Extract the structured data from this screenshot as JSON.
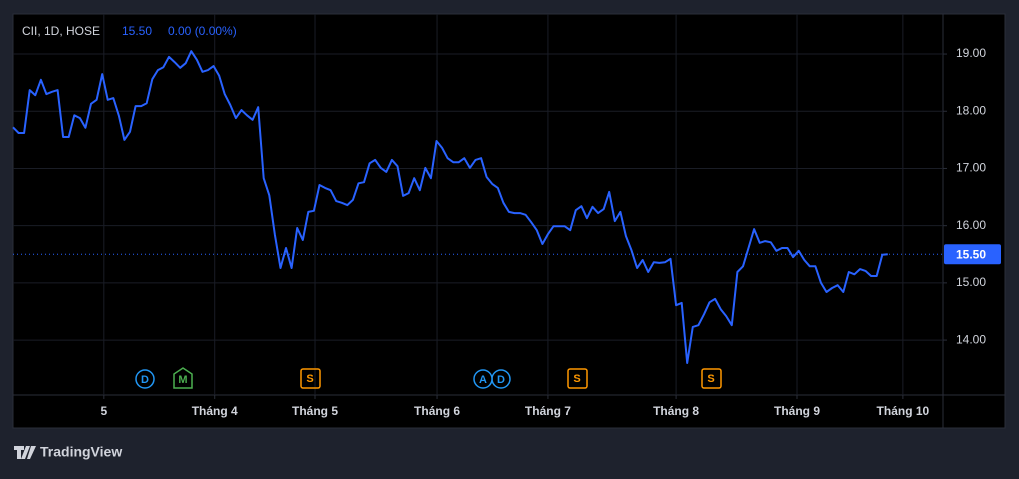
{
  "chart_data": {
    "type": "line",
    "header": {
      "symbol": "CII, 1D, HOSE",
      "price": "15.50",
      "change": "0.00 (0.00%)"
    },
    "x": [
      0,
      1,
      2,
      3,
      4,
      5,
      6,
      7,
      8,
      9,
      10,
      11,
      12,
      13,
      14,
      15,
      16,
      17,
      18,
      19,
      20,
      21,
      22,
      23,
      24,
      25,
      26,
      27,
      28,
      29,
      30,
      31,
      32,
      33,
      34,
      35,
      36,
      37,
      38,
      39,
      40,
      41,
      42,
      43,
      44,
      45,
      46,
      47,
      48,
      49,
      50,
      51,
      52,
      53,
      54,
      55,
      56,
      57,
      58,
      59,
      60,
      61,
      62,
      63,
      64,
      65,
      66,
      67,
      68,
      69,
      70,
      71,
      72,
      73,
      74,
      75,
      76,
      77,
      78,
      79,
      80,
      81,
      82,
      83,
      84,
      85,
      86,
      87,
      88,
      89,
      90,
      91,
      92,
      93,
      94,
      95,
      96,
      97,
      98,
      99,
      100,
      101,
      102,
      103,
      104,
      105,
      106,
      107,
      108,
      109,
      110,
      111,
      112,
      113,
      114,
      115,
      116,
      117,
      118,
      119,
      120,
      121,
      122,
      123,
      124,
      125,
      126,
      127,
      128,
      129,
      130,
      131,
      132,
      133,
      134,
      135,
      136,
      137,
      138,
      139,
      140,
      141,
      142,
      143,
      144,
      145,
      146,
      147,
      148,
      149,
      150,
      151,
      152,
      153,
      154,
      155,
      156,
      157
    ],
    "series": [
      {
        "name": "CII",
        "color": "#2962ff",
        "values": [
          17.72,
          17.62,
          17.62,
          18.37,
          18.28,
          18.55,
          18.3,
          18.34,
          18.37,
          17.55,
          17.55,
          17.93,
          17.88,
          17.71,
          18.13,
          18.2,
          18.65,
          18.2,
          18.23,
          17.92,
          17.5,
          17.64,
          18.09,
          18.09,
          18.14,
          18.56,
          18.72,
          18.77,
          18.95,
          18.86,
          18.76,
          18.84,
          19.05,
          18.9,
          18.69,
          18.72,
          18.79,
          18.62,
          18.3,
          18.11,
          17.88,
          18.02,
          17.93,
          17.85,
          18.07,
          16.83,
          16.53,
          15.84,
          15.26,
          15.61,
          15.26,
          15.96,
          15.75,
          16.24,
          16.26,
          16.71,
          16.66,
          16.62,
          16.43,
          16.4,
          16.36,
          16.45,
          16.74,
          16.76,
          17.09,
          17.15,
          17.01,
          16.94,
          17.15,
          17.04,
          16.52,
          16.57,
          16.83,
          16.62,
          17.01,
          16.83,
          17.48,
          17.36,
          17.18,
          17.11,
          17.11,
          17.18,
          17.01,
          17.15,
          17.18,
          16.85,
          16.73,
          16.66,
          16.4,
          16.24,
          16.22,
          16.22,
          16.19,
          16.06,
          15.92,
          15.68,
          15.85,
          15.99,
          15.99,
          15.99,
          15.92,
          16.27,
          16.34,
          16.13,
          16.33,
          16.22,
          16.29,
          16.59,
          16.08,
          16.24,
          15.82,
          15.57,
          15.26,
          15.4,
          15.19,
          15.36,
          15.35,
          15.36,
          15.42,
          14.61,
          14.65,
          13.6,
          14.23,
          14.26,
          14.45,
          14.66,
          14.72,
          14.54,
          14.42,
          14.26,
          15.19,
          15.29,
          15.61,
          15.94,
          15.7,
          15.73,
          15.71,
          15.56,
          15.61,
          15.61,
          15.45,
          15.56,
          15.4,
          15.29,
          15.29,
          15.0,
          14.84,
          14.91,
          14.96,
          14.84,
          15.19,
          15.15,
          15.24,
          15.21,
          15.12,
          15.12,
          15.49,
          15.5
        ]
      }
    ],
    "last_price": {
      "value": 15.5,
      "label": "15.50"
    },
    "xlim": [
      0,
      166.9
    ],
    "ylim": [
      13.04,
      19.7
    ],
    "xticks": [
      {
        "value": 16.3,
        "label": "5"
      },
      {
        "value": 36.2,
        "label": "Tháng 4"
      },
      {
        "value": 54.2,
        "label": "Tháng 5"
      },
      {
        "value": 76.1,
        "label": "Tháng 6"
      },
      {
        "value": 96,
        "label": "Tháng 7"
      },
      {
        "value": 119,
        "label": "Tháng 8"
      },
      {
        "value": 140.7,
        "label": "Tháng 9"
      },
      {
        "value": 159.7,
        "label": "Tháng 10"
      }
    ],
    "yticks": [
      {
        "value": 14,
        "label": "14.00"
      },
      {
        "value": 15,
        "label": "15.00"
      },
      {
        "value": 16,
        "label": "16.00"
      },
      {
        "value": 17,
        "label": "17.00"
      },
      {
        "value": 18,
        "label": "18.00"
      },
      {
        "value": 19,
        "label": "19.00"
      }
    ],
    "grid": true,
    "events": [
      "D",
      "M",
      "S",
      "A",
      "D",
      "S",
      "S"
    ],
    "branding": "TradingView"
  }
}
